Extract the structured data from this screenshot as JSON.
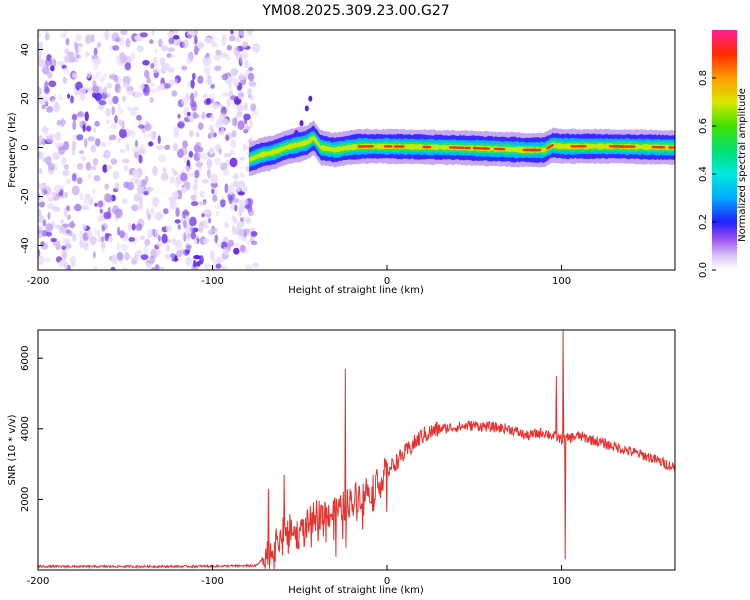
{
  "title": "YM08.2025.309.23.00.G27",
  "chart_data": [
    {
      "type": "heatmap",
      "name": "spectrogram",
      "xlabel": "Height of straight line (km)",
      "ylabel": "Frequency (Hz)",
      "xlim": [
        -200,
        165
      ],
      "ylim": [
        -50,
        48
      ],
      "xticks": [
        -200,
        -100,
        0,
        100
      ],
      "yticks": [
        -40,
        -20,
        0,
        20,
        40
      ],
      "noise_region_x": [
        -200,
        -75
      ],
      "signal_start_x": -79,
      "ridge": [
        {
          "x": -79,
          "f": -5
        },
        {
          "x": -72,
          "f": -3
        },
        {
          "x": -65,
          "f": -2
        },
        {
          "x": -58,
          "f": 0
        },
        {
          "x": -52,
          "f": 1
        },
        {
          "x": -46,
          "f": 2
        },
        {
          "x": -42,
          "f": 4
        },
        {
          "x": -38,
          "f": 0
        },
        {
          "x": -30,
          "f": -1
        },
        {
          "x": -22,
          "f": 0
        },
        {
          "x": -15,
          "f": 0.5
        },
        {
          "x": 0,
          "f": 0.5
        },
        {
          "x": 40,
          "f": 0
        },
        {
          "x": 80,
          "f": -1
        },
        {
          "x": 90,
          "f": -1
        },
        {
          "x": 95,
          "f": 1
        },
        {
          "x": 100,
          "f": 0.5
        },
        {
          "x": 130,
          "f": 0.5
        },
        {
          "x": 165,
          "f": 0
        }
      ],
      "colorbar": {
        "label": "Normalized spectral amplitude",
        "range": [
          0,
          1
        ],
        "ticks": [
          "0.0",
          "0.2",
          "0.4",
          "0.6",
          "0.8"
        ],
        "tick_values": [
          0.0,
          0.2,
          0.4,
          0.6,
          0.8
        ]
      }
    },
    {
      "type": "line",
      "name": "snr",
      "xlabel": "Height of straight line (km)",
      "ylabel": "SNR (10 * v/v)",
      "xlim": [
        -200,
        165
      ],
      "ylim": [
        0,
        6800
      ],
      "xticks": [
        -200,
        -100,
        0,
        100
      ],
      "yticks": [
        2000,
        4000,
        6000
      ],
      "series_color": "#e8302c",
      "envelope": [
        {
          "x": -200,
          "y": 100
        },
        {
          "x": -120,
          "y": 100
        },
        {
          "x": -75,
          "y": 120
        },
        {
          "x": -65,
          "y": 600
        },
        {
          "x": -58,
          "y": 1200
        },
        {
          "x": -50,
          "y": 1000
        },
        {
          "x": -40,
          "y": 1600
        },
        {
          "x": -30,
          "y": 1600
        },
        {
          "x": -20,
          "y": 2000
        },
        {
          "x": -10,
          "y": 2300
        },
        {
          "x": 0,
          "y": 2800
        },
        {
          "x": 10,
          "y": 3300
        },
        {
          "x": 20,
          "y": 3800
        },
        {
          "x": 30,
          "y": 4000
        },
        {
          "x": 50,
          "y": 4100
        },
        {
          "x": 70,
          "y": 4000
        },
        {
          "x": 80,
          "y": 3800
        },
        {
          "x": 90,
          "y": 3900
        },
        {
          "x": 100,
          "y": 3700
        },
        {
          "x": 110,
          "y": 3800
        },
        {
          "x": 130,
          "y": 3500
        },
        {
          "x": 150,
          "y": 3200
        },
        {
          "x": 165,
          "y": 2900
        }
      ],
      "spikes": [
        {
          "x": -24,
          "y": 5700
        },
        {
          "x": -68,
          "y": 2300
        },
        {
          "x": -59,
          "y": 2700
        },
        {
          "x": 97,
          "y": 5500
        },
        {
          "x": 101,
          "y": 6800
        },
        {
          "x": 102,
          "y": 300
        }
      ]
    }
  ]
}
